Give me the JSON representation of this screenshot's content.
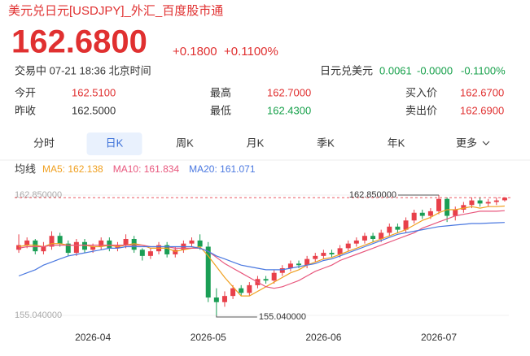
{
  "header": {
    "title": "美元兑日元[USDJPY]_外汇_百度股市通"
  },
  "quote": {
    "price": "162.6800",
    "change": "+0.1800",
    "change_pct": "+0.1100%",
    "status": "交易中 07-21 18:36 北京时间",
    "related": {
      "label": "日元兑美元",
      "price": "0.0061",
      "change": "-0.0000",
      "change_pct": "-0.1100%"
    }
  },
  "stats": [
    [
      {
        "label": "今开",
        "value": "162.5100",
        "color": "#e03030"
      },
      {
        "label": "最高",
        "value": "162.7000",
        "color": "#e03030"
      },
      {
        "label": "买入价",
        "value": "162.6700",
        "color": "#e03030"
      }
    ],
    [
      {
        "label": "昨收",
        "value": "162.5000",
        "color": "#333333"
      },
      {
        "label": "最低",
        "value": "162.4300",
        "color": "#16a04a"
      },
      {
        "label": "卖出价",
        "value": "162.6900",
        "color": "#e03030"
      }
    ]
  ],
  "tabs": [
    "分时",
    "日K",
    "周K",
    "月K",
    "季K",
    "年K",
    "更多"
  ],
  "selected_tab": 1,
  "chart_data": {
    "type": "candlestick",
    "indicator_label": "均线",
    "up_color": "#e8404a",
    "down_color": "#1a9e55",
    "categories": [
      null,
      null,
      null,
      null,
      null,
      null,
      null,
      null,
      null,
      "2026-04",
      null,
      null,
      null,
      null,
      null,
      null,
      null,
      null,
      null,
      null,
      null,
      null,
      null,
      "2026-05",
      null,
      null,
      null,
      null,
      null,
      null,
      null,
      null,
      null,
      null,
      null,
      null,
      null,
      "2026-06",
      null,
      null,
      null,
      null,
      null,
      null,
      null,
      null,
      null,
      null,
      null,
      null,
      null,
      "2026-07",
      null,
      null,
      null,
      null,
      null,
      null,
      null,
      null
    ],
    "open": [
      159.3,
      159.6,
      159.9,
      159.2,
      159.5,
      160.2,
      159.7,
      159.1,
      159.8,
      159.3,
      159.5,
      159.9,
      159.4,
      159.6,
      160.0,
      159.3,
      158.9,
      159.2,
      159.6,
      159.0,
      159.3,
      159.7,
      159.9,
      159.5,
      156.2,
      155.9,
      156.3,
      156.8,
      156.5,
      157.0,
      157.4,
      157.3,
      157.8,
      158.1,
      158.4,
      158.3,
      158.7,
      158.9,
      159.1,
      159.0,
      159.4,
      159.7,
      159.9,
      160.2,
      160.0,
      160.4,
      160.8,
      160.6,
      161.2,
      161.7,
      161.5,
      161.8,
      162.6,
      161.5,
      161.9,
      162.2,
      162.5,
      162.3,
      162.4,
      162.51
    ],
    "high": [
      160.3,
      160.1,
      160.0,
      159.8,
      160.5,
      160.4,
      159.9,
      160.0,
      160.0,
      159.7,
      160.1,
      160.1,
      159.8,
      160.3,
      160.2,
      159.4,
      159.4,
      159.8,
      159.8,
      159.5,
      159.9,
      160.1,
      160.3,
      159.8,
      156.8,
      156.6,
      157.0,
      157.0,
      157.2,
      157.6,
      157.6,
      158.0,
      158.3,
      158.6,
      158.6,
      158.9,
      159.1,
      159.3,
      159.3,
      159.6,
      159.9,
      160.1,
      160.4,
      160.4,
      160.6,
      161.0,
      161.0,
      161.4,
      161.9,
      161.9,
      162.0,
      162.85,
      162.7,
      162.1,
      162.4,
      162.7,
      162.7,
      162.6,
      162.7,
      162.7
    ],
    "low": [
      159.1,
      159.4,
      159.0,
      159.0,
      159.3,
      159.5,
      158.9,
      158.9,
      159.1,
      159.1,
      159.3,
      159.2,
      159.2,
      159.4,
      159.1,
      158.6,
      158.7,
      159.0,
      158.8,
      158.8,
      159.1,
      159.5,
      159.3,
      155.9,
      155.04,
      155.6,
      156.1,
      156.3,
      156.3,
      156.8,
      157.1,
      157.1,
      157.6,
      157.9,
      158.1,
      158.1,
      158.5,
      158.7,
      158.8,
      158.8,
      159.2,
      159.5,
      159.7,
      159.8,
      159.8,
      160.2,
      160.4,
      160.4,
      161.0,
      161.3,
      161.3,
      161.6,
      161.1,
      161.2,
      161.7,
      162.0,
      162.1,
      162.1,
      162.2,
      162.43
    ],
    "close": [
      159.6,
      159.9,
      159.2,
      159.5,
      160.2,
      159.7,
      159.1,
      159.8,
      159.3,
      159.5,
      159.9,
      159.4,
      159.6,
      160.0,
      159.3,
      158.9,
      159.2,
      159.6,
      159.0,
      159.3,
      159.7,
      159.9,
      159.5,
      156.2,
      155.9,
      156.3,
      156.8,
      156.5,
      157.0,
      157.4,
      157.3,
      157.8,
      158.1,
      158.4,
      158.3,
      158.7,
      158.9,
      159.1,
      159.0,
      159.4,
      159.7,
      159.9,
      160.2,
      160.0,
      160.4,
      160.8,
      160.6,
      161.2,
      161.7,
      161.5,
      161.8,
      162.6,
      161.5,
      161.9,
      162.2,
      162.5,
      162.3,
      162.4,
      162.5,
      162.68
    ],
    "series": [
      {
        "name": "MA5: 162.138",
        "color": "#f0a020",
        "values": [
          159.5,
          159.6,
          159.6,
          159.5,
          159.7,
          159.7,
          159.6,
          159.6,
          159.6,
          159.5,
          159.5,
          159.6,
          159.5,
          159.6,
          159.7,
          159.6,
          159.4,
          159.4,
          159.4,
          159.2,
          159.3,
          159.4,
          159.5,
          158.9,
          158.2,
          157.5,
          156.9,
          156.3,
          156.3,
          156.6,
          156.9,
          157.2,
          157.5,
          157.8,
          158.0,
          158.3,
          158.5,
          158.7,
          158.8,
          159.0,
          159.2,
          159.4,
          159.6,
          159.8,
          160.0,
          160.2,
          160.4,
          160.6,
          160.9,
          161.2,
          161.4,
          161.7,
          161.9,
          161.9,
          162.0,
          162.1,
          162.0,
          162.1,
          162.1,
          162.138
        ]
      },
      {
        "name": "MA10: 161.834",
        "color": "#e8577d",
        "values": [
          159.4,
          159.5,
          159.5,
          159.5,
          159.6,
          159.6,
          159.6,
          159.6,
          159.6,
          159.6,
          159.6,
          159.6,
          159.6,
          159.6,
          159.6,
          159.6,
          159.5,
          159.5,
          159.5,
          159.4,
          159.4,
          159.4,
          159.4,
          159.2,
          158.8,
          158.4,
          158.1,
          157.8,
          157.5,
          157.2,
          156.9,
          156.8,
          156.9,
          157.1,
          157.3,
          157.6,
          157.9,
          158.1,
          158.3,
          158.6,
          158.8,
          159.0,
          159.2,
          159.4,
          159.6,
          159.8,
          160.0,
          160.2,
          160.4,
          160.7,
          160.9,
          161.1,
          161.3,
          161.5,
          161.6,
          161.7,
          161.8,
          161.8,
          161.8,
          161.834
        ]
      },
      {
        "name": "MA20: 161.071",
        "color": "#4a78e0",
        "values": [
          157.6,
          157.8,
          158.0,
          158.3,
          158.5,
          158.7,
          158.9,
          159.0,
          159.1,
          159.2,
          159.3,
          159.4,
          159.4,
          159.5,
          159.5,
          159.5,
          159.5,
          159.5,
          159.5,
          159.5,
          159.5,
          159.5,
          159.4,
          159.2,
          158.9,
          158.7,
          158.5,
          158.3,
          158.2,
          158.1,
          158.0,
          158.0,
          158.0,
          158.1,
          158.2,
          158.3,
          158.4,
          158.6,
          158.7,
          158.9,
          159.1,
          159.3,
          159.5,
          159.7,
          159.9,
          160.1,
          160.3,
          160.4,
          160.5,
          160.6,
          160.7,
          160.8,
          160.85,
          160.9,
          160.95,
          161.0,
          161.0,
          161.03,
          161.05,
          161.071
        ]
      }
    ],
    "ylim": [
      154.62,
      163.27
    ],
    "yticks": [
      {
        "value": 155.04,
        "label": "155.040000"
      },
      {
        "value": 162.85,
        "label": "162.850000"
      }
    ],
    "annotations": [
      {
        "value": 162.85,
        "label": "162.850000",
        "kind": "max"
      },
      {
        "value": 155.04,
        "label": "155.040000",
        "kind": "min"
      }
    ]
  }
}
